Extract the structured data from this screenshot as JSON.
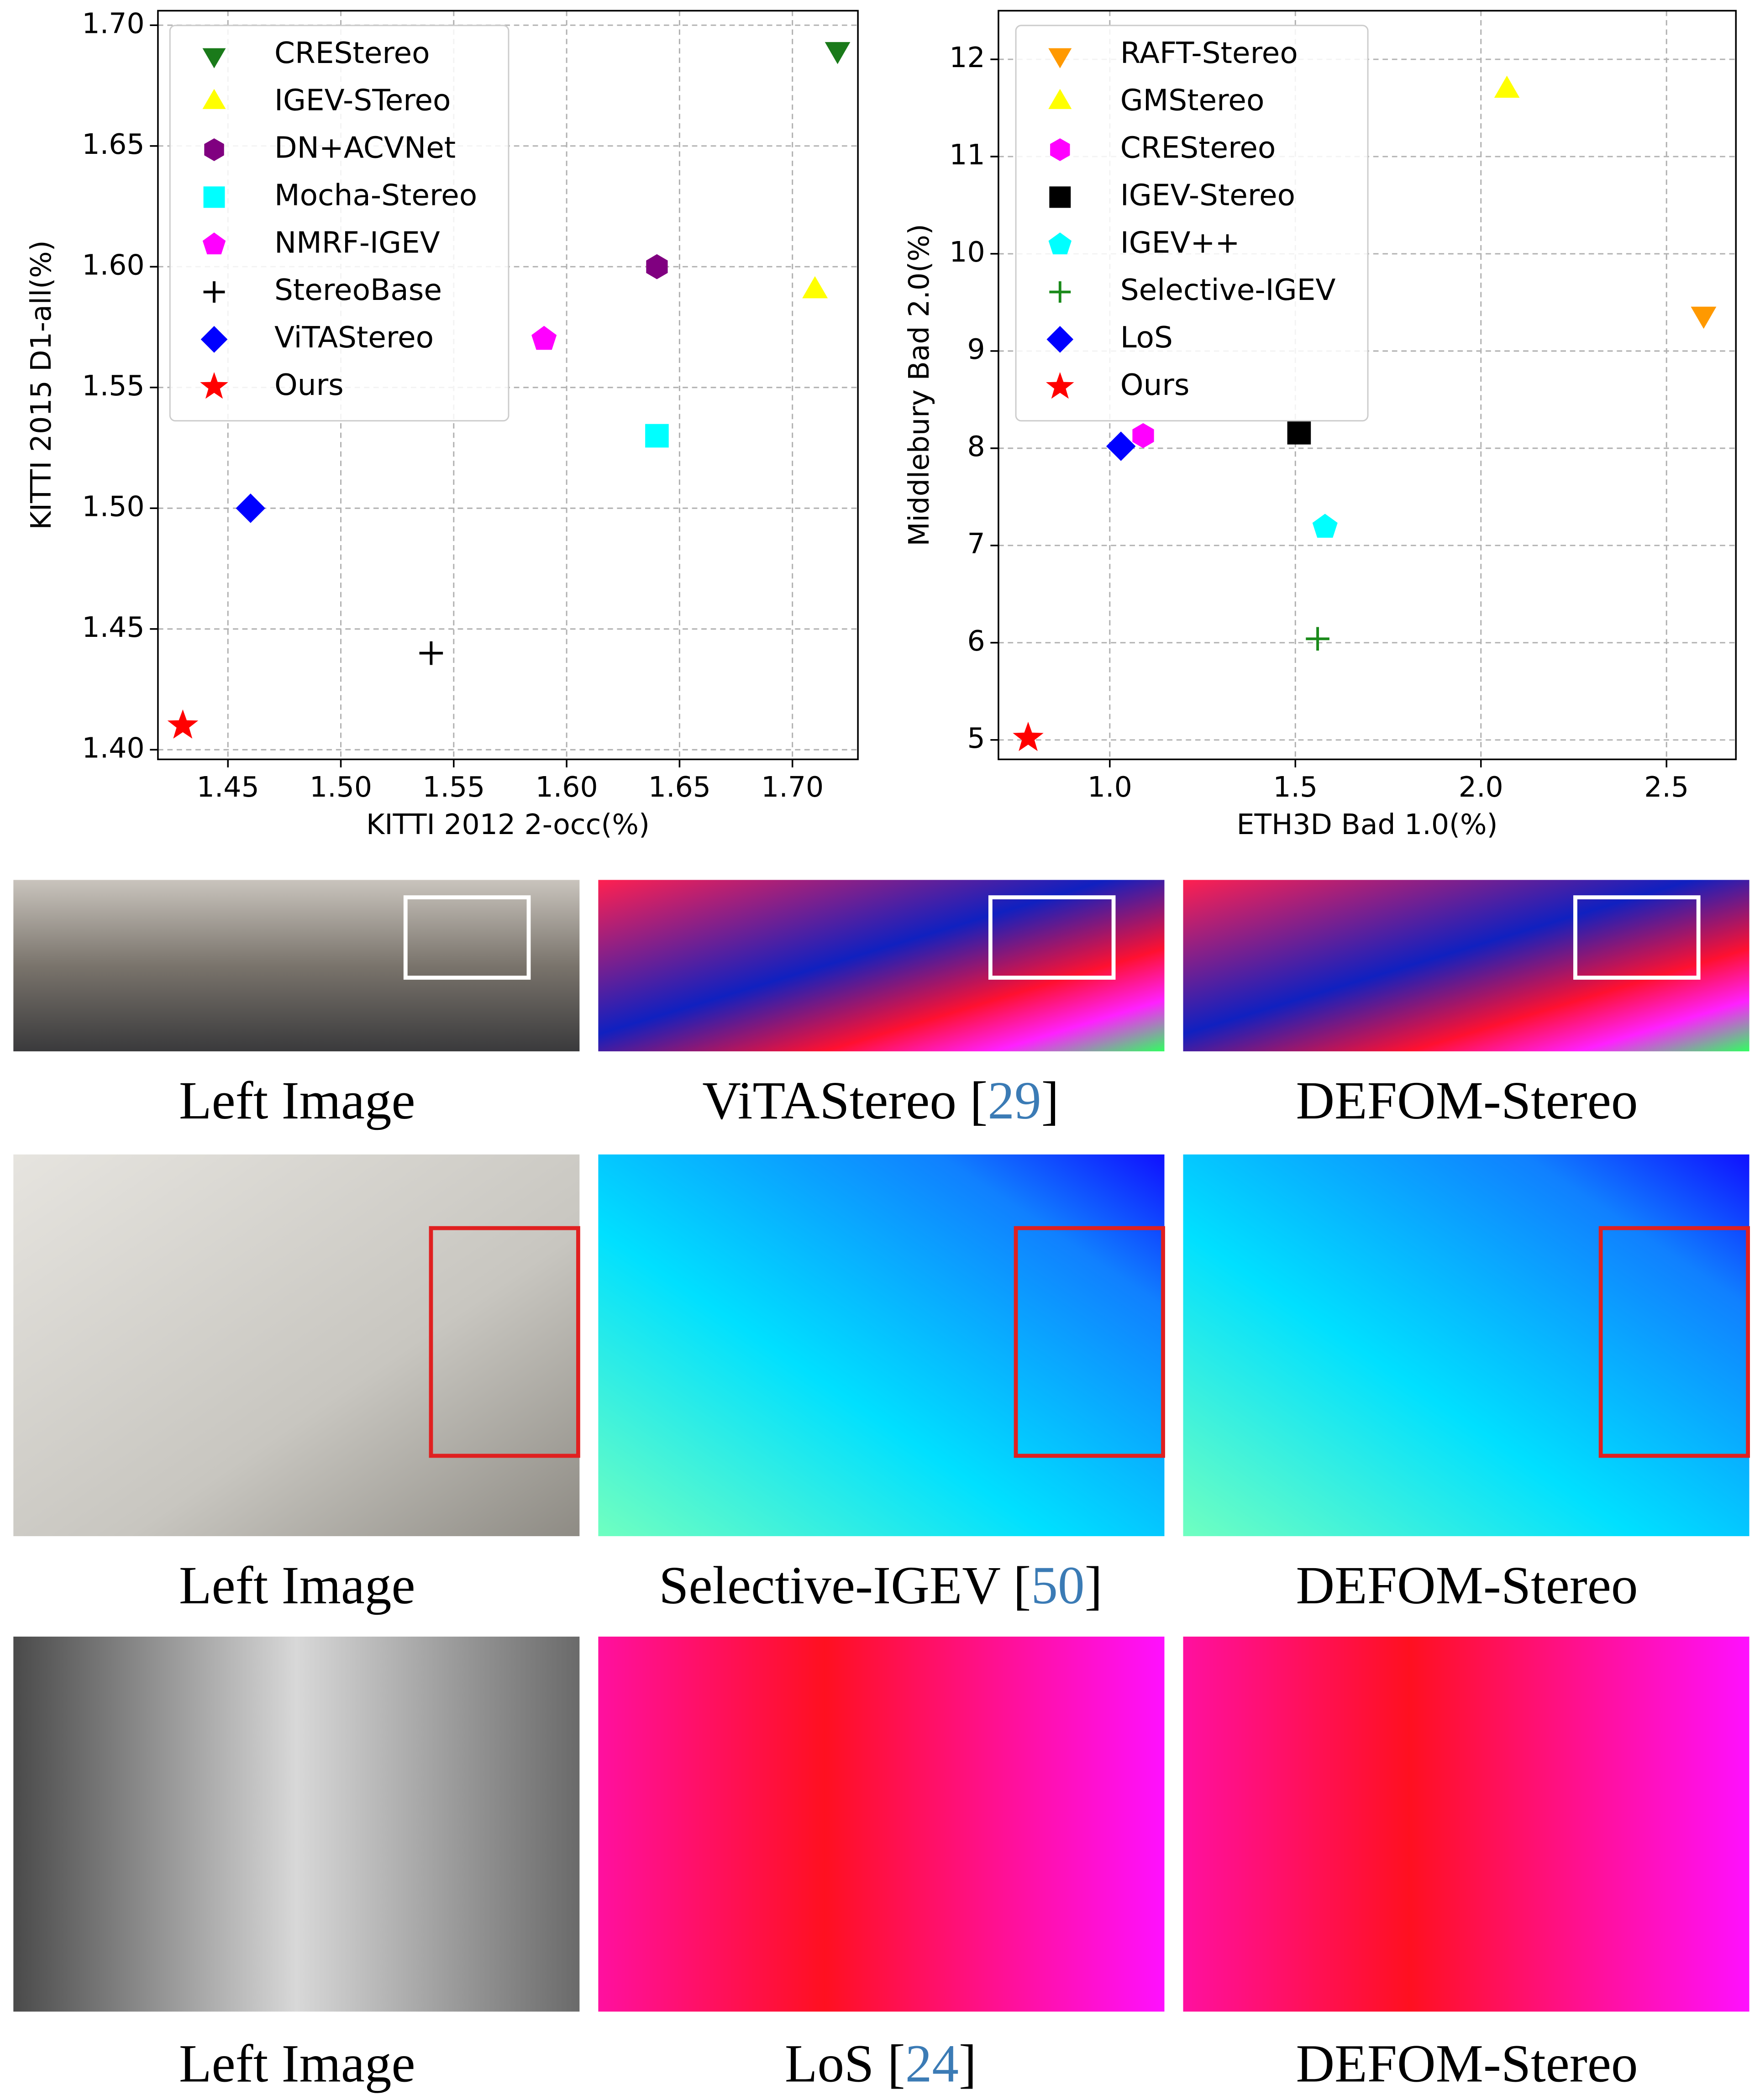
{
  "chart_data": [
    {
      "type": "scatter",
      "x_label": "KITTI 2012 2-occ(%)",
      "y_label": "KITTI 2015 D1-all(%)",
      "xlim": [
        1.419,
        1.729
      ],
      "ylim": [
        1.396,
        1.706
      ],
      "xticks": [
        1.45,
        {
          "value": 1.5,
          "label": "1.50"
        },
        1.55,
        {
          "value": 1.6,
          "label": "1.60"
        },
        1.65,
        {
          "value": 1.7,
          "label": "1.70"
        }
      ],
      "yticks": [
        {
          "value": 1.4,
          "label": "1.40"
        },
        1.45,
        {
          "value": 1.5,
          "label": "1.50"
        },
        1.55,
        {
          "value": 1.6,
          "label": "1.60"
        },
        1.65,
        {
          "value": 1.7,
          "label": "1.70"
        }
      ],
      "grid": true,
      "legend": "upper left",
      "series": [
        {
          "name": "CREStereo",
          "color": "#1a7a1a",
          "marker": "triangle-down",
          "x": [
            1.72
          ],
          "values": [
            1.69
          ]
        },
        {
          "name": "IGEV-STereo",
          "color": "#ffff00",
          "marker": "triangle-up",
          "x": [
            1.71
          ],
          "values": [
            1.59
          ]
        },
        {
          "name": "DN+ACVNet",
          "color": "#800080",
          "marker": "hexagon",
          "x": [
            1.64
          ],
          "values": [
            1.6
          ]
        },
        {
          "name": "Mocha-Stereo",
          "color": "#00ffff",
          "marker": "square",
          "x": [
            1.64
          ],
          "values": [
            1.53
          ]
        },
        {
          "name": "NMRF-IGEV",
          "color": "#ff00ff",
          "marker": "pentagon",
          "x": [
            1.59
          ],
          "values": [
            1.57
          ]
        },
        {
          "name": "StereoBase",
          "color": "#000000",
          "marker": "plus",
          "x": [
            1.54
          ],
          "values": [
            1.44
          ]
        },
        {
          "name": "ViTAStereo",
          "color": "#0000ff",
          "marker": "diamond",
          "x": [
            1.46
          ],
          "values": [
            1.5
          ]
        },
        {
          "name": "Ours",
          "color": "#ff0000",
          "marker": "star",
          "x": [
            1.43
          ],
          "values": [
            1.41
          ]
        }
      ]
    },
    {
      "type": "scatter",
      "x_label": "ETH3D Bad 1.0(%)",
      "y_label": "Middlebury Bad 2.0(%)",
      "xlim": [
        0.7,
        2.687
      ],
      "ylim": [
        4.8,
        12.5
      ],
      "xticks": [
        {
          "value": 1,
          "label": "1.0"
        },
        1.5,
        {
          "value": 2,
          "label": "2.0"
        },
        2.5
      ],
      "yticks": [
        5,
        6,
        7,
        8,
        9,
        10,
        11,
        12
      ],
      "grid": true,
      "legend": "upper left",
      "series": [
        {
          "name": "RAFT-Stereo",
          "color": "#ff9900",
          "marker": "triangle-down",
          "x": [
            2.6
          ],
          "values": [
            9.38
          ]
        },
        {
          "name": "GMStereo",
          "color": "#ffff00",
          "marker": "triangle-up",
          "x": [
            2.07
          ],
          "values": [
            11.68
          ]
        },
        {
          "name": "CREStereo",
          "color": "#ff00ff",
          "marker": "hexagon",
          "x": [
            1.09
          ],
          "values": [
            8.13
          ]
        },
        {
          "name": "IGEV-Stereo",
          "color": "#000000",
          "marker": "square",
          "x": [
            1.51
          ],
          "values": [
            8.16
          ]
        },
        {
          "name": "IGEV++",
          "color": "#00ffff",
          "marker": "pentagon",
          "x": [
            1.58
          ],
          "values": [
            7.19
          ]
        },
        {
          "name": "Selective-IGEV",
          "color": "#1a8a1a",
          "marker": "plus",
          "x": [
            1.56
          ],
          "values": [
            6.04
          ]
        },
        {
          "name": "LoS",
          "color": "#0000ff",
          "marker": "diamond",
          "x": [
            1.03
          ],
          "values": [
            8.02
          ]
        },
        {
          "name": "Ours",
          "color": "#ff0000",
          "marker": "star",
          "x": [
            0.78
          ],
          "values": [
            5.02
          ]
        }
      ]
    }
  ],
  "figure": {
    "rows": [
      [
        [
          "Left Image"
        ],
        [
          "ViTAStereo [",
          "29",
          "]"
        ],
        [
          "DEFOM-Stereo"
        ]
      ],
      [
        [
          "Left Image"
        ],
        [
          "Selective-IGEV [",
          "50",
          "]"
        ],
        [
          "DEFOM-Stereo"
        ]
      ],
      [
        [
          "Left Image"
        ],
        [
          "LoS [",
          "24",
          "]"
        ],
        [
          "DEFOM-Stereo"
        ]
      ]
    ]
  }
}
